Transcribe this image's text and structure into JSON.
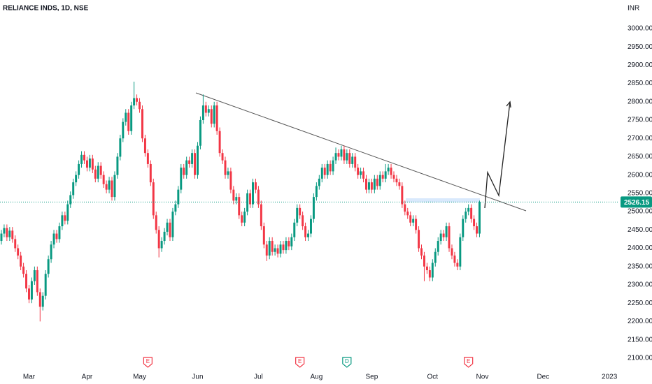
{
  "chart_data": {
    "type": "candlestick",
    "title": "RELIANCE INDS, 1D, NSE",
    "currency": "INR",
    "up_color": "#089981",
    "down_color": "#f23645",
    "ylim": [
      2073,
      3078
    ],
    "yticks": [
      {
        "value": 2100,
        "label": "2100.00"
      },
      {
        "value": 2150,
        "label": "2150.00"
      },
      {
        "value": 2200,
        "label": "2200.00"
      },
      {
        "value": 2250,
        "label": "2250.00"
      },
      {
        "value": 2300,
        "label": "2300.00"
      },
      {
        "value": 2350,
        "label": "2350.00"
      },
      {
        "value": 2400,
        "label": "2400.00"
      },
      {
        "value": 2450,
        "label": "2450.00"
      },
      {
        "value": 2500,
        "label": "2500.00"
      },
      {
        "value": 2550,
        "label": "2550.00"
      },
      {
        "value": 2600,
        "label": "2600.00"
      },
      {
        "value": 2650,
        "label": "2650.00"
      },
      {
        "value": 2700,
        "label": "2700.00"
      },
      {
        "value": 2750,
        "label": "2750.00"
      },
      {
        "value": 2800,
        "label": "2800.00"
      },
      {
        "value": 2850,
        "label": "2850.00"
      },
      {
        "value": 2900,
        "label": "2900.00"
      },
      {
        "value": 2950,
        "label": "2950.00"
      },
      {
        "value": 3000,
        "label": "3000.00"
      }
    ],
    "xlim": [
      -0.5,
      223.5
    ],
    "xticks": [
      {
        "value": 10,
        "label": "Mar"
      },
      {
        "value": 31,
        "label": "Apr"
      },
      {
        "value": 50,
        "label": "May"
      },
      {
        "value": 71,
        "label": "Jun"
      },
      {
        "value": 93,
        "label": "Jul"
      },
      {
        "value": 114,
        "label": "Aug"
      },
      {
        "value": 134,
        "label": "Sep"
      },
      {
        "value": 156,
        "label": "Oct"
      },
      {
        "value": 174,
        "label": "Nov"
      },
      {
        "value": 196,
        "label": "Dec"
      },
      {
        "value": 220,
        "label": "2023"
      }
    ],
    "events": [
      {
        "label": "E",
        "x": 53,
        "color": "#f23645"
      },
      {
        "label": "E",
        "x": 108,
        "color": "#f23645"
      },
      {
        "label": "D",
        "x": 125,
        "color": "#089981"
      },
      {
        "label": "E",
        "x": 169,
        "color": "#f23645"
      }
    ],
    "open": [
      2420,
      2440,
      2455,
      2430,
      2448,
      2425,
      2400,
      2380,
      2350,
      2330,
      2290,
      2260,
      2310,
      2340,
      2280,
      2240,
      2270,
      2330,
      2370,
      2410,
      2440,
      2425,
      2460,
      2490,
      2475,
      2520,
      2545,
      2580,
      2600,
      2630,
      2655,
      2640,
      2620,
      2645,
      2615,
      2590,
      2625,
      2600,
      2575,
      2560,
      2585,
      2540,
      2600,
      2650,
      2700,
      2745,
      2770,
      2720,
      2790,
      2810,
      2800,
      2780,
      2700,
      2660,
      2630,
      2580,
      2490,
      2450,
      2400,
      2420,
      2445,
      2470,
      2430,
      2500,
      2520,
      2560,
      2620,
      2600,
      2640,
      2630,
      2660,
      2600,
      2680,
      2750,
      2790,
      2770,
      2780,
      2740,
      2790,
      2720,
      2660,
      2640,
      2600,
      2610,
      2560,
      2530,
      2540,
      2490,
      2470,
      2500,
      2550,
      2520,
      2580,
      2560,
      2520,
      2460,
      2410,
      2380,
      2420,
      2390,
      2400,
      2385,
      2410,
      2395,
      2420,
      2405,
      2430,
      2470,
      2510,
      2490,
      2460,
      2430,
      2440,
      2480,
      2540,
      2570,
      2590,
      2620,
      2600,
      2630,
      2610,
      2640,
      2660,
      2650,
      2670,
      2640,
      2660,
      2630,
      2650,
      2620,
      2600,
      2610,
      2590,
      2560,
      2580,
      2560,
      2590,
      2570,
      2600,
      2590,
      2610,
      2620,
      2600,
      2590,
      2580,
      2570,
      2520,
      2500,
      2490,
      2470,
      2480,
      2450,
      2400,
      2380,
      2350,
      2340,
      2320,
      2360,
      2390,
      2420,
      2440,
      2430,
      2460,
      2400,
      2380,
      2360,
      2350,
      2430,
      2480,
      2500,
      2510,
      2480,
      2460,
      2440
    ],
    "high": [
      2450,
      2465,
      2465,
      2458,
      2458,
      2435,
      2410,
      2390,
      2360,
      2340,
      2300,
      2320,
      2350,
      2350,
      2290,
      2280,
      2340,
      2380,
      2420,
      2450,
      2450,
      2470,
      2500,
      2500,
      2530,
      2555,
      2590,
      2610,
      2640,
      2665,
      2665,
      2650,
      2655,
      2655,
      2625,
      2635,
      2635,
      2610,
      2585,
      2595,
      2595,
      2610,
      2660,
      2710,
      2755,
      2780,
      2780,
      2800,
      2855,
      2820,
      2810,
      2790,
      2710,
      2670,
      2640,
      2590,
      2500,
      2460,
      2430,
      2455,
      2480,
      2480,
      2510,
      2530,
      2570,
      2630,
      2630,
      2650,
      2650,
      2670,
      2670,
      2690,
      2760,
      2820,
      2800,
      2790,
      2790,
      2800,
      2800,
      2730,
      2670,
      2650,
      2620,
      2620,
      2570,
      2550,
      2550,
      2500,
      2510,
      2560,
      2560,
      2590,
      2590,
      2570,
      2530,
      2470,
      2420,
      2430,
      2430,
      2410,
      2410,
      2420,
      2420,
      2430,
      2430,
      2440,
      2480,
      2520,
      2520,
      2500,
      2470,
      2450,
      2490,
      2550,
      2580,
      2600,
      2630,
      2630,
      2640,
      2640,
      2650,
      2675,
      2670,
      2680,
      2680,
      2670,
      2670,
      2660,
      2660,
      2630,
      2620,
      2620,
      2600,
      2590,
      2590,
      2600,
      2600,
      2610,
      2610,
      2630,
      2630,
      2630,
      2610,
      2600,
      2590,
      2580,
      2530,
      2510,
      2500,
      2490,
      2490,
      2460,
      2410,
      2390,
      2360,
      2350,
      2370,
      2400,
      2430,
      2450,
      2450,
      2470,
      2470,
      2410,
      2390,
      2370,
      2440,
      2490,
      2510,
      2520,
      2520,
      2490,
      2470,
      2530
    ],
    "low": [
      2410,
      2430,
      2420,
      2420,
      2415,
      2390,
      2370,
      2340,
      2320,
      2280,
      2250,
      2250,
      2300,
      2270,
      2200,
      2230,
      2260,
      2320,
      2360,
      2400,
      2415,
      2415,
      2450,
      2465,
      2465,
      2510,
      2535,
      2570,
      2590,
      2620,
      2630,
      2610,
      2610,
      2605,
      2580,
      2580,
      2590,
      2565,
      2550,
      2550,
      2530,
      2530,
      2590,
      2640,
      2690,
      2735,
      2710,
      2710,
      2780,
      2790,
      2770,
      2690,
      2650,
      2620,
      2570,
      2480,
      2440,
      2375,
      2390,
      2410,
      2435,
      2420,
      2420,
      2490,
      2510,
      2550,
      2590,
      2590,
      2620,
      2620,
      2590,
      2590,
      2670,
      2740,
      2760,
      2760,
      2730,
      2730,
      2710,
      2650,
      2630,
      2590,
      2590,
      2550,
      2520,
      2520,
      2480,
      2460,
      2460,
      2490,
      2510,
      2510,
      2550,
      2510,
      2450,
      2400,
      2365,
      2370,
      2380,
      2380,
      2375,
      2375,
      2385,
      2385,
      2395,
      2395,
      2420,
      2460,
      2480,
      2450,
      2420,
      2420,
      2430,
      2470,
      2530,
      2560,
      2580,
      2590,
      2590,
      2600,
      2600,
      2630,
      2640,
      2640,
      2630,
      2630,
      2620,
      2620,
      2610,
      2590,
      2590,
      2580,
      2550,
      2550,
      2550,
      2550,
      2560,
      2560,
      2580,
      2580,
      2600,
      2590,
      2580,
      2570,
      2560,
      2510,
      2490,
      2480,
      2460,
      2460,
      2440,
      2390,
      2370,
      2310,
      2330,
      2310,
      2310,
      2350,
      2380,
      2410,
      2420,
      2420,
      2390,
      2370,
      2350,
      2340,
      2340,
      2420,
      2470,
      2490,
      2470,
      2450,
      2430,
      2430
    ],
    "close": [
      2440,
      2455,
      2430,
      2448,
      2425,
      2400,
      2380,
      2350,
      2330,
      2290,
      2260,
      2310,
      2340,
      2280,
      2240,
      2270,
      2330,
      2370,
      2410,
      2440,
      2425,
      2460,
      2490,
      2475,
      2520,
      2545,
      2580,
      2600,
      2630,
      2655,
      2640,
      2620,
      2645,
      2615,
      2590,
      2625,
      2600,
      2575,
      2560,
      2585,
      2540,
      2600,
      2650,
      2700,
      2745,
      2770,
      2720,
      2790,
      2810,
      2800,
      2780,
      2700,
      2660,
      2630,
      2580,
      2490,
      2450,
      2400,
      2420,
      2445,
      2470,
      2430,
      2500,
      2520,
      2560,
      2620,
      2600,
      2640,
      2630,
      2660,
      2600,
      2680,
      2750,
      2790,
      2770,
      2780,
      2740,
      2790,
      2720,
      2660,
      2640,
      2600,
      2610,
      2560,
      2530,
      2540,
      2490,
      2470,
      2500,
      2550,
      2520,
      2580,
      2560,
      2520,
      2460,
      2410,
      2380,
      2420,
      2390,
      2400,
      2385,
      2410,
      2395,
      2420,
      2405,
      2430,
      2470,
      2510,
      2490,
      2460,
      2430,
      2440,
      2480,
      2540,
      2570,
      2590,
      2620,
      2600,
      2630,
      2610,
      2640,
      2660,
      2650,
      2670,
      2640,
      2660,
      2630,
      2650,
      2620,
      2600,
      2610,
      2590,
      2560,
      2580,
      2560,
      2590,
      2570,
      2600,
      2590,
      2610,
      2620,
      2600,
      2590,
      2580,
      2570,
      2520,
      2500,
      2490,
      2470,
      2480,
      2450,
      2400,
      2380,
      2350,
      2340,
      2320,
      2360,
      2390,
      2420,
      2440,
      2430,
      2460,
      2400,
      2380,
      2360,
      2350,
      2430,
      2480,
      2500,
      2510,
      2480,
      2460,
      2440,
      2526.15
    ]
  }
}
